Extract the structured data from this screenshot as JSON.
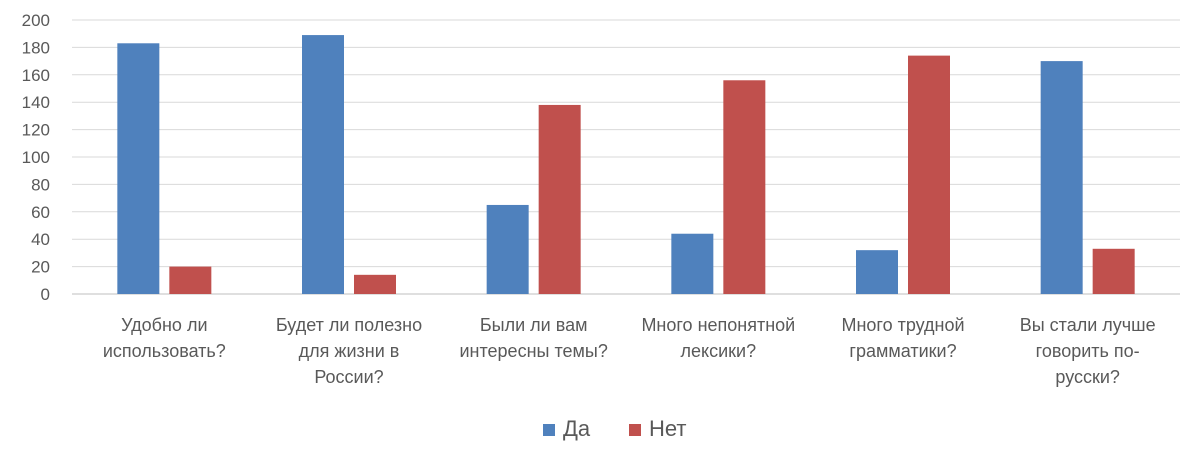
{
  "chart_data": {
    "type": "bar",
    "categories": [
      [
        "Удобно ли",
        "использовать?"
      ],
      [
        "Будет ли полезно",
        "для жизни в",
        "России?"
      ],
      [
        "Были ли вам",
        "интересны темы?"
      ],
      [
        "Много непонятной",
        "лексики?"
      ],
      [
        "Много трудной",
        "грамматики?"
      ],
      [
        "Вы стали лучше",
        "говорить по-",
        "русски?"
      ]
    ],
    "series": [
      {
        "name": "Да",
        "color": "#4f81bd",
        "values": [
          183,
          189,
          65,
          44,
          32,
          170
        ]
      },
      {
        "name": "Нет",
        "color": "#c0504d",
        "values": [
          20,
          14,
          138,
          156,
          174,
          33
        ]
      }
    ],
    "yticks": [
      "0",
      "20",
      "40",
      "60",
      "80",
      "100",
      "120",
      "140",
      "160",
      "180",
      "200"
    ],
    "ylim": [
      0,
      200
    ],
    "grid": true,
    "legend_position": "bottom",
    "title": "",
    "xlabel": "",
    "ylabel": ""
  }
}
